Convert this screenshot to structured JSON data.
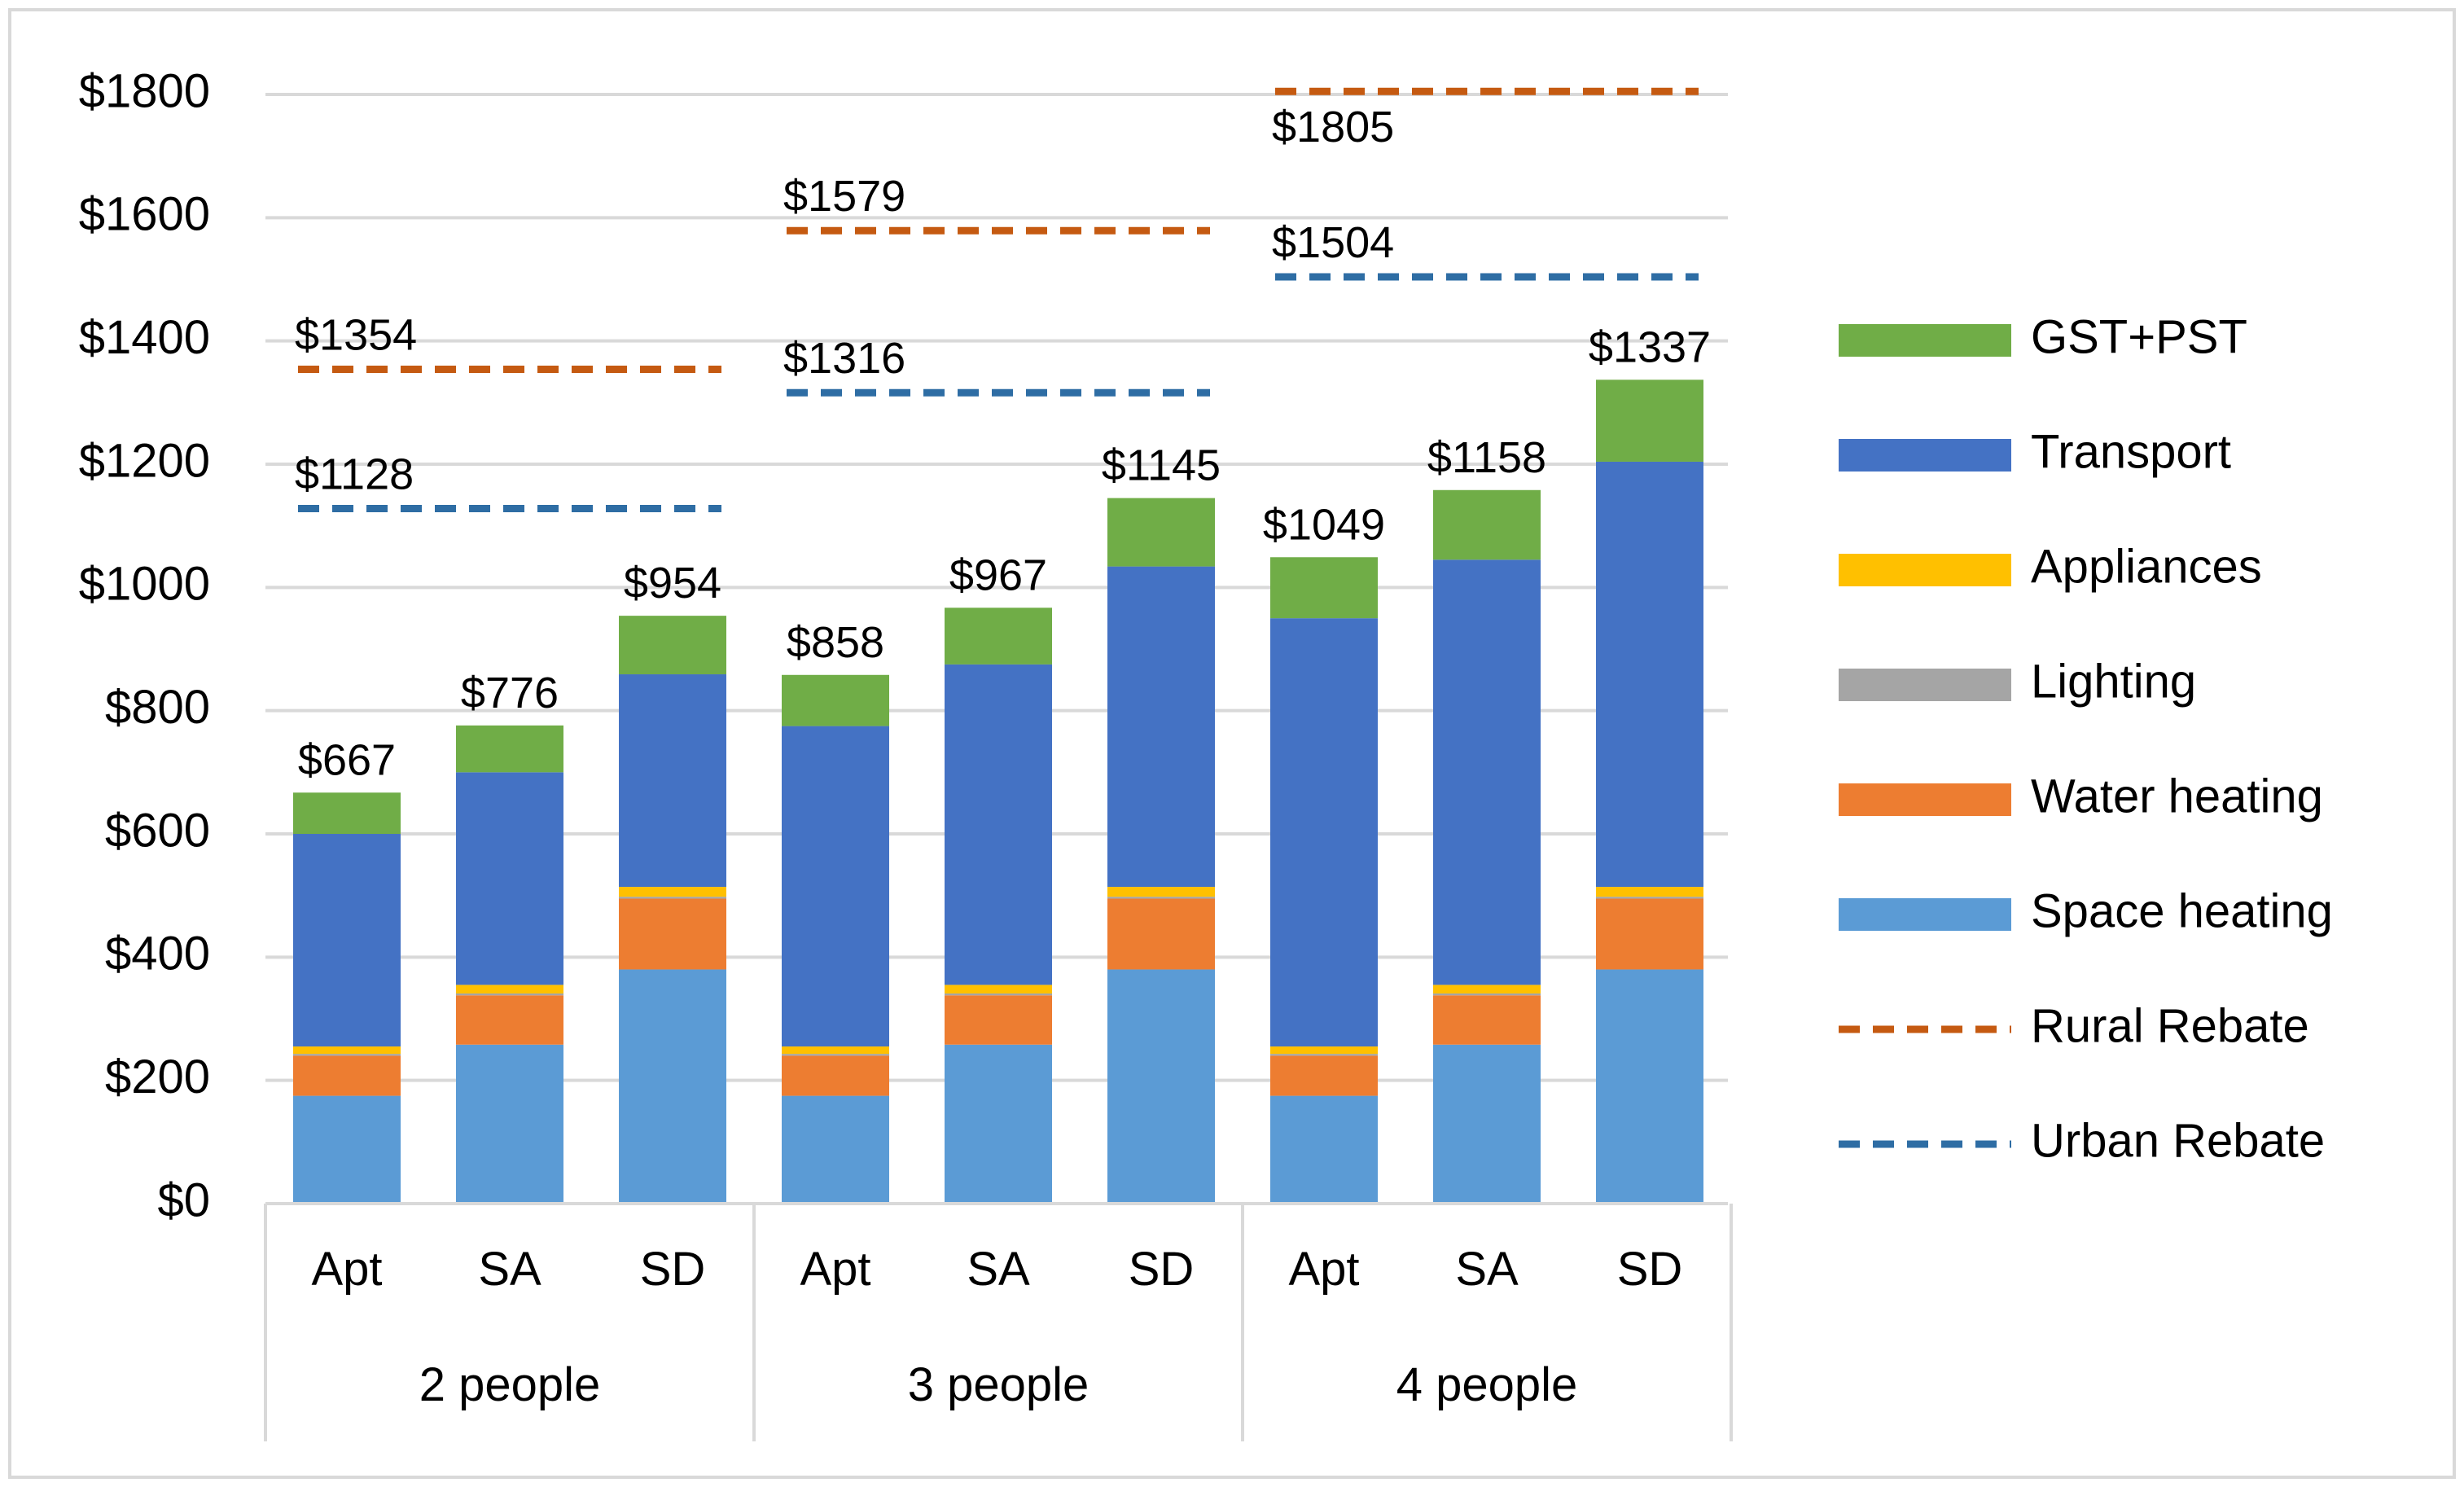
{
  "chart_data": {
    "type": "bar",
    "stacked": true,
    "title": "",
    "xlabel": "",
    "ylabel": "",
    "ylim": [
      0,
      1800
    ],
    "y_ticks": [
      "$0",
      "$200",
      "$400",
      "$600",
      "$800",
      "$1000",
      "$1200",
      "$1400",
      "$1600",
      "$1800"
    ],
    "y_tick_values": [
      0,
      200,
      400,
      600,
      800,
      1000,
      1200,
      1400,
      1600,
      1800
    ],
    "grid": true,
    "legend_position": "right",
    "groups": [
      "2 people",
      "3 people",
      "4 people"
    ],
    "categories": [
      "Apt",
      "SA",
      "SD",
      "Apt",
      "SA",
      "SD",
      "Apt",
      "SA",
      "SD"
    ],
    "series": [
      {
        "name": "Space heating",
        "color": "#5B9BD5",
        "values": [
          175,
          258,
          380,
          175,
          258,
          380,
          175,
          258,
          380
        ]
      },
      {
        "name": "Water heating",
        "color": "#ED7D31",
        "values": [
          65,
          80,
          115,
          65,
          80,
          115,
          65,
          80,
          115
        ]
      },
      {
        "name": "Lighting",
        "color": "#A5A5A5",
        "values": [
          3,
          3,
          3,
          3,
          3,
          3,
          3,
          3,
          3
        ]
      },
      {
        "name": "Appliances",
        "color": "#FFC000",
        "values": [
          12,
          14,
          16,
          12,
          14,
          16,
          12,
          14,
          16
        ]
      },
      {
        "name": "Transport",
        "color": "#4472C4",
        "values": [
          345,
          345,
          345,
          520,
          520,
          520,
          695,
          690,
          690
        ]
      },
      {
        "name": "GST+PST",
        "color": "#70AD47",
        "values": [
          67,
          76,
          95,
          83,
          92,
          111,
          99,
          113,
          133
        ]
      }
    ],
    "totals": [
      667,
      776,
      954,
      858,
      967,
      1145,
      1049,
      1158,
      1337
    ],
    "total_labels": [
      "$667",
      "$776",
      "$954",
      "$858",
      "$967",
      "$1145",
      "$1049",
      "$1158",
      "$1337"
    ],
    "rebates": [
      {
        "name": "Rural Rebate",
        "color": "#C55A11",
        "values": [
          1354,
          1579,
          1805
        ],
        "labels": [
          "$1354",
          "$1579",
          "$1805"
        ]
      },
      {
        "name": "Urban Rebate",
        "color": "#2E6DA4",
        "values": [
          1128,
          1316,
          1504
        ],
        "labels": [
          "$1128",
          "$1316",
          "$1504"
        ]
      }
    ],
    "legend": [
      {
        "name": "GST+PST",
        "kind": "box",
        "color": "#70AD47"
      },
      {
        "name": "Transport",
        "kind": "box",
        "color": "#4472C4"
      },
      {
        "name": "Appliances",
        "kind": "box",
        "color": "#FFC000"
      },
      {
        "name": "Lighting",
        "kind": "box",
        "color": "#A5A5A5"
      },
      {
        "name": "Water heating",
        "kind": "box",
        "color": "#ED7D31"
      },
      {
        "name": "Space heating",
        "kind": "box",
        "color": "#5B9BD5"
      },
      {
        "name": "Rural Rebate",
        "kind": "dash",
        "color": "#C55A11"
      },
      {
        "name": "Urban Rebate",
        "kind": "dash",
        "color": "#2E6DA4"
      }
    ]
  }
}
